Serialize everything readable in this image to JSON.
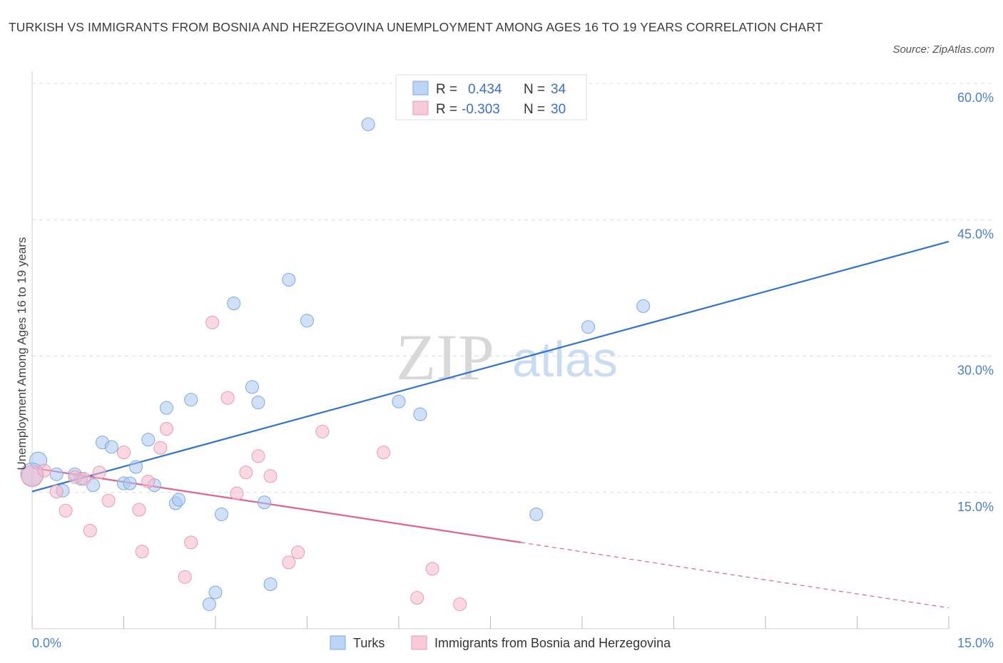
{
  "title": "TURKISH VS IMMIGRANTS FROM BOSNIA AND HERZEGOVINA UNEMPLOYMENT AMONG AGES 16 TO 19 YEARS CORRELATION CHART",
  "source": "Source: ZipAtlas.com",
  "watermark": {
    "zip": "ZIP",
    "atlas": "atlas"
  },
  "legend": {
    "r_label": "R =",
    "n_label": "N =",
    "rows": [
      {
        "r": "0.434",
        "n": "34"
      },
      {
        "r": "-0.303",
        "n": "30"
      }
    ]
  },
  "chart_data": {
    "type": "scatter",
    "xlabel": "",
    "ylabel": "Unemployment Among Ages 16 to 19 years",
    "xlim": [
      0,
      15
    ],
    "ylim": [
      0,
      60
    ],
    "x_tick_labels": [
      "0.0%",
      "15.0%"
    ],
    "y_ticks": [
      15,
      30,
      45,
      60
    ],
    "y_tick_labels": [
      "15.0%",
      "30.0%",
      "45.0%",
      "60.0%"
    ],
    "grid": "horizontal-dashed",
    "legend_position": "bottom",
    "colors": {
      "turks": "#a9c8f0",
      "turks_line": "#2f74d0",
      "bosnia": "#f5b8cb",
      "bosnia_line": "#e0628f"
    },
    "series": [
      {
        "name": "Turks",
        "trend": {
          "x0": 0,
          "y0": 15.1,
          "x1": 15,
          "y1": 42.6
        },
        "points": [
          [
            0.1,
            18.5
          ],
          [
            0.4,
            17.0
          ],
          [
            0.7,
            17.0
          ],
          [
            0.5,
            15.2
          ],
          [
            0.8,
            16.5
          ],
          [
            1.0,
            15.8
          ],
          [
            1.15,
            20.5
          ],
          [
            1.3,
            20.0
          ],
          [
            1.5,
            16.0
          ],
          [
            1.6,
            16.0
          ],
          [
            1.7,
            17.8
          ],
          [
            1.9,
            20.8
          ],
          [
            2.0,
            15.8
          ],
          [
            2.2,
            24.3
          ],
          [
            2.35,
            13.8
          ],
          [
            2.4,
            14.2
          ],
          [
            2.6,
            25.2
          ],
          [
            2.9,
            2.7
          ],
          [
            3.0,
            4.0
          ],
          [
            3.1,
            12.6
          ],
          [
            3.3,
            35.8
          ],
          [
            3.6,
            26.6
          ],
          [
            3.7,
            24.9
          ],
          [
            3.8,
            13.9
          ],
          [
            3.9,
            4.9
          ],
          [
            4.2,
            38.4
          ],
          [
            4.5,
            33.9
          ],
          [
            5.5,
            55.5
          ],
          [
            6.0,
            25.0
          ],
          [
            6.35,
            23.6
          ],
          [
            8.25,
            12.6
          ],
          [
            9.1,
            33.2
          ],
          [
            10.0,
            35.5
          ],
          [
            0.0,
            17.0
          ]
        ]
      },
      {
        "name": "Immigrants from Bosnia and Herzegovina",
        "trend": {
          "x0": 0,
          "y0": 17.7,
          "x1": 8.0,
          "y1": 9.5,
          "dash_x1": 15,
          "dash_y1": 2.3
        },
        "points": [
          [
            0.0,
            16.8
          ],
          [
            0.2,
            17.4
          ],
          [
            0.4,
            15.1
          ],
          [
            0.55,
            13.0
          ],
          [
            0.7,
            16.7
          ],
          [
            0.85,
            16.5
          ],
          [
            0.95,
            10.8
          ],
          [
            1.1,
            17.2
          ],
          [
            1.25,
            14.1
          ],
          [
            1.5,
            19.4
          ],
          [
            1.75,
            13.1
          ],
          [
            1.8,
            8.5
          ],
          [
            1.9,
            16.2
          ],
          [
            2.1,
            19.9
          ],
          [
            2.2,
            22.0
          ],
          [
            2.5,
            5.7
          ],
          [
            2.6,
            9.5
          ],
          [
            2.95,
            33.7
          ],
          [
            3.2,
            25.4
          ],
          [
            3.35,
            14.9
          ],
          [
            3.5,
            17.2
          ],
          [
            3.7,
            19.0
          ],
          [
            3.9,
            16.8
          ],
          [
            4.2,
            7.3
          ],
          [
            4.35,
            8.4
          ],
          [
            4.75,
            21.7
          ],
          [
            5.75,
            19.4
          ],
          [
            6.3,
            3.4
          ],
          [
            6.55,
            6.6
          ],
          [
            7.0,
            2.7
          ]
        ]
      }
    ]
  }
}
